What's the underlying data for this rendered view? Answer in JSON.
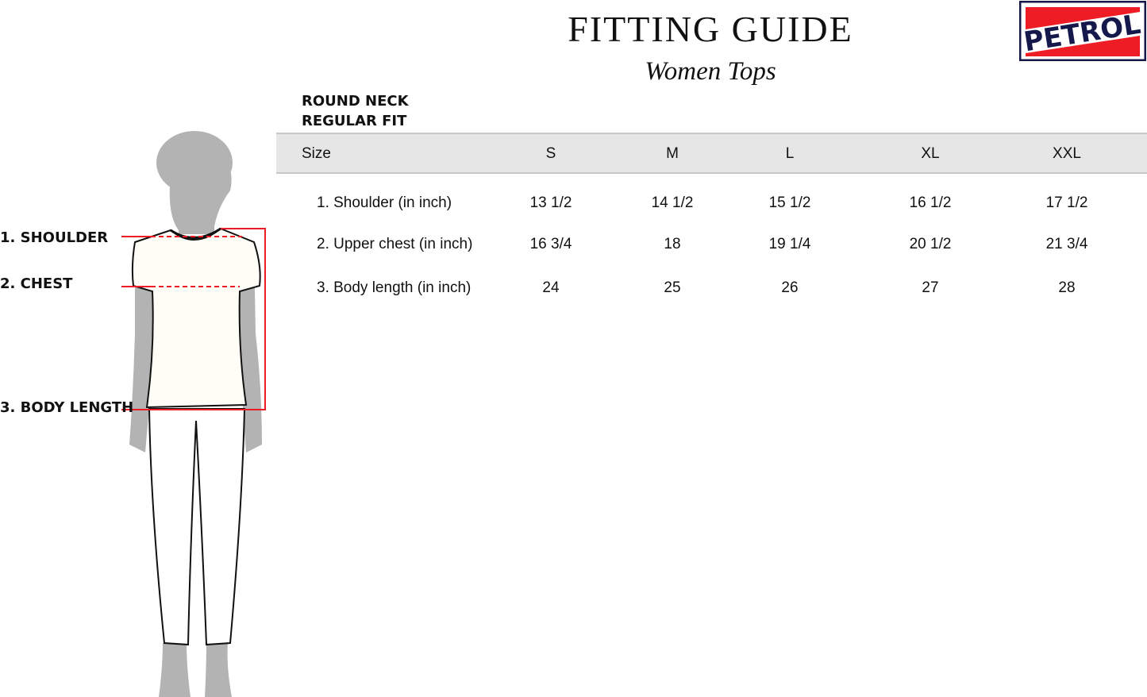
{
  "header": {
    "title": "FITTING GUIDE",
    "subtitle": "Women Tops",
    "logo_text": "PETROL"
  },
  "spec": {
    "neck": "ROUND NECK",
    "fit": "REGULAR FIT"
  },
  "table": {
    "columns": [
      "Size",
      "S",
      "M",
      "L",
      "XL",
      "XXL"
    ],
    "rows": [
      {
        "label": "1. Shoulder (in inch)",
        "values": [
          "13 1/2",
          "14 1/2",
          "15 1/2",
          "16 1/2",
          "17 1/2"
        ]
      },
      {
        "label": "2. Upper chest (in inch)",
        "values": [
          "16 3/4",
          "18",
          "19 1/4",
          "20 1/2",
          "21 3/4"
        ]
      },
      {
        "label": "3. Body length (in inch)",
        "values": [
          "24",
          "25",
          "26",
          "27",
          "28"
        ]
      }
    ]
  },
  "figure": {
    "labels": [
      "1. SHOULDER",
      "2. CHEST",
      "3. BODY LENGTH"
    ]
  },
  "colors": {
    "accent": "#ee1c24",
    "logo_navy": "#14184a",
    "silhouette": "#b3b3b3"
  }
}
